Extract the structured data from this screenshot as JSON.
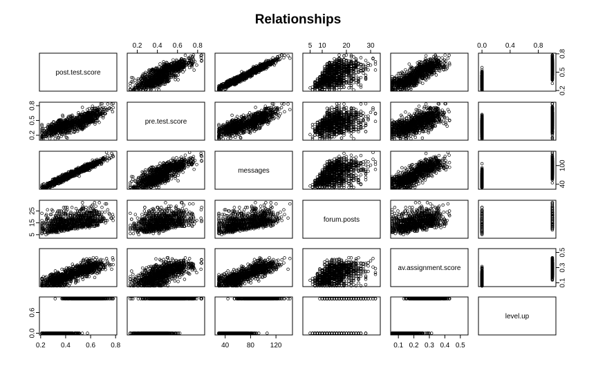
{
  "chart_data": {
    "type": "scatter",
    "title": "Relationships",
    "variables": [
      "post.test.score",
      "pre.test.score",
      "messages",
      "forum.posts",
      "av.assignment.score",
      "level.up"
    ],
    "ranges": {
      "post.test.score": [
        0.19,
        0.81
      ],
      "pre.test.score": [
        0.1,
        0.87
      ],
      "messages": [
        24,
        146
      ],
      "forum.posts": [
        2,
        34
      ],
      "av.assignment.score": [
        0.05,
        0.55
      ],
      "level.up": [
        -0.05,
        1.05
      ]
    },
    "tick_labels": {
      "post.test.score": [
        "0.2",
        "0.4",
        "0.6",
        "0.8"
      ],
      "pre.test.score": [
        "0.2",
        "0.4",
        "0.6",
        "0.8"
      ],
      "messages": [
        "40",
        "80",
        "120"
      ],
      "messages_right": [
        "40",
        "100"
      ],
      "forum.posts": [
        "5",
        "10",
        "20",
        "30"
      ],
      "forum.posts_left": [
        "5",
        "15",
        "25"
      ],
      "av.assignment.score": [
        "0.1",
        "0.2",
        "0.3",
        "0.4",
        "0.5"
      ],
      "av.assignment.score_right": [
        "0.1",
        "0.3",
        "0.5"
      ],
      "level.up": [
        "0.0",
        "0.4",
        "0.8"
      ],
      "level.up_left": [
        "0.0",
        "0.6"
      ],
      "pre.test.score_left": [
        "0.2",
        "0.5",
        "0.8"
      ],
      "post.test.score_right": [
        "0.2",
        "0.5",
        "0.8"
      ]
    },
    "tick_values": {
      "post.test.score": [
        0.2,
        0.4,
        0.6,
        0.8
      ],
      "pre.test.score": [
        0.2,
        0.4,
        0.6,
        0.8
      ],
      "messages": [
        40,
        80,
        120
      ],
      "messages_right": [
        40,
        100
      ],
      "forum.posts": [
        5,
        10,
        20,
        30
      ],
      "forum.posts_left": [
        5,
        15,
        25
      ],
      "av.assignment.score": [
        0.1,
        0.2,
        0.3,
        0.4,
        0.5
      ],
      "av.assignment.score_right": [
        0.1,
        0.3,
        0.5
      ],
      "level.up": [
        0,
        0.4,
        0.8
      ],
      "level.up_left": [
        0,
        0.6
      ],
      "pre.test.score_left": [
        0.2,
        0.5,
        0.8
      ],
      "post.test.score_right": [
        0.2,
        0.5,
        0.8
      ]
    },
    "approx_points": 1000,
    "grid": false,
    "legend": "none"
  }
}
